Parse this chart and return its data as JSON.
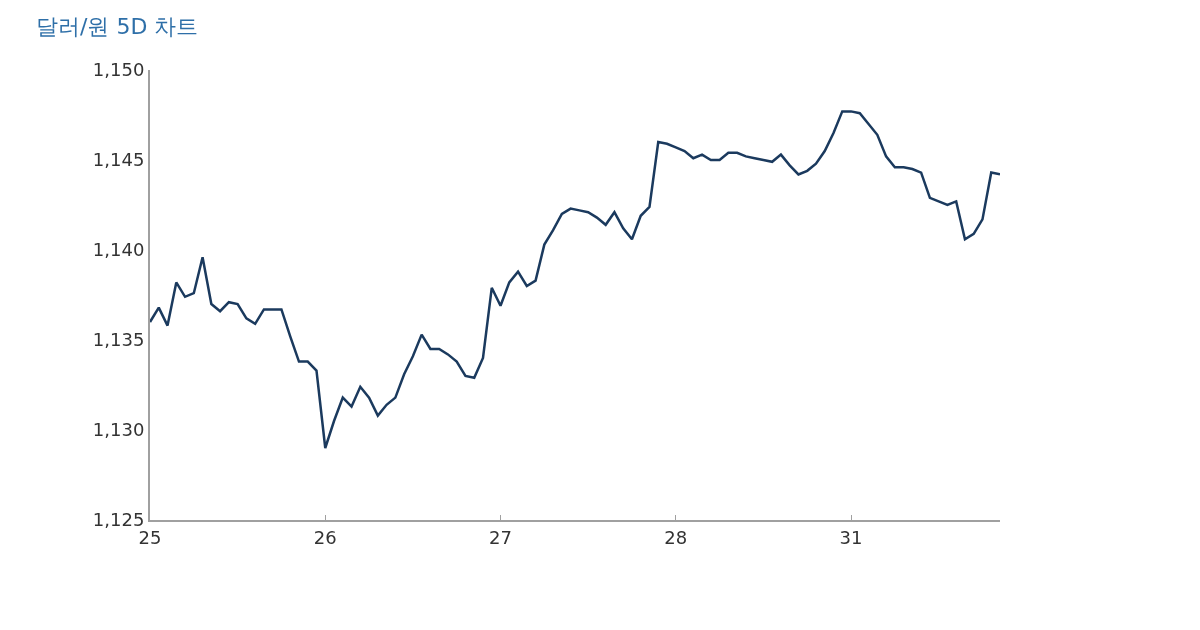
{
  "chart_data": {
    "type": "line",
    "title": "달러/원 5D 차트",
    "categories": [
      "25",
      null,
      null,
      null,
      null,
      null,
      null,
      null,
      null,
      null,
      null,
      null,
      null,
      null,
      null,
      null,
      null,
      null,
      null,
      null,
      "26",
      null,
      null,
      null,
      null,
      null,
      null,
      null,
      null,
      null,
      null,
      null,
      null,
      null,
      null,
      null,
      null,
      null,
      null,
      null,
      "27",
      null,
      null,
      null,
      null,
      null,
      null,
      null,
      null,
      null,
      null,
      null,
      null,
      null,
      null,
      null,
      null,
      null,
      null,
      null,
      "28",
      null,
      null,
      null,
      null,
      null,
      null,
      null,
      null,
      null,
      null,
      null,
      null,
      null,
      null,
      null,
      null,
      null,
      null,
      null,
      "31",
      null,
      null,
      null,
      null,
      null,
      null,
      null,
      null,
      null,
      null,
      null,
      null,
      null,
      null,
      null,
      null,
      null
    ],
    "series": [
      {
        "color": "#1b3a5e",
        "values": [
          1136.0,
          1136.8,
          1135.8,
          1138.2,
          1137.4,
          1137.6,
          1139.6,
          1137.0,
          1136.6,
          1137.1,
          1137.0,
          1136.2,
          1135.9,
          1136.7,
          1136.7,
          1136.7,
          1135.2,
          1133.8,
          1133.8,
          1133.3,
          1129.0,
          1130.5,
          1131.8,
          1131.3,
          1132.4,
          1131.8,
          1130.8,
          1131.4,
          1131.8,
          1133.1,
          1134.1,
          1135.3,
          1134.5,
          1134.5,
          1134.2,
          1133.8,
          1133.0,
          1132.9,
          1134.0,
          1137.9,
          1136.9,
          1138.2,
          1138.8,
          1138.0,
          1138.3,
          1140.3,
          1141.1,
          1142.0,
          1142.3,
          1142.2,
          1142.1,
          1141.8,
          1141.4,
          1142.1,
          1141.2,
          1140.6,
          1141.9,
          1142.4,
          1146.0,
          1145.9,
          1145.7,
          1145.5,
          1145.1,
          1145.3,
          1145.0,
          1145.0,
          1145.4,
          1145.4,
          1145.2,
          1145.1,
          1145.0,
          1144.9,
          1145.3,
          1144.7,
          1144.2,
          1144.4,
          1144.8,
          1145.5,
          1146.5,
          1147.7,
          1147.7,
          1147.6,
          1147.0,
          1146.4,
          1145.2,
          1144.6,
          1144.6,
          1144.5,
          1144.3,
          1142.9,
          1142.7,
          1142.5,
          1142.7,
          1140.6,
          1140.9,
          1141.7,
          1144.3,
          1144.2
        ]
      }
    ],
    "ylim": [
      1125,
      1150
    ],
    "yticks": [
      {
        "value": 1125,
        "label": "1,125"
      },
      {
        "value": 1130,
        "label": "1,130"
      },
      {
        "value": 1135,
        "label": "1,135"
      },
      {
        "value": 1140,
        "label": "1,140"
      },
      {
        "value": 1145,
        "label": "1,145"
      },
      {
        "value": 1150,
        "label": "1,150"
      }
    ],
    "marker": "none",
    "line_style": "solid"
  }
}
